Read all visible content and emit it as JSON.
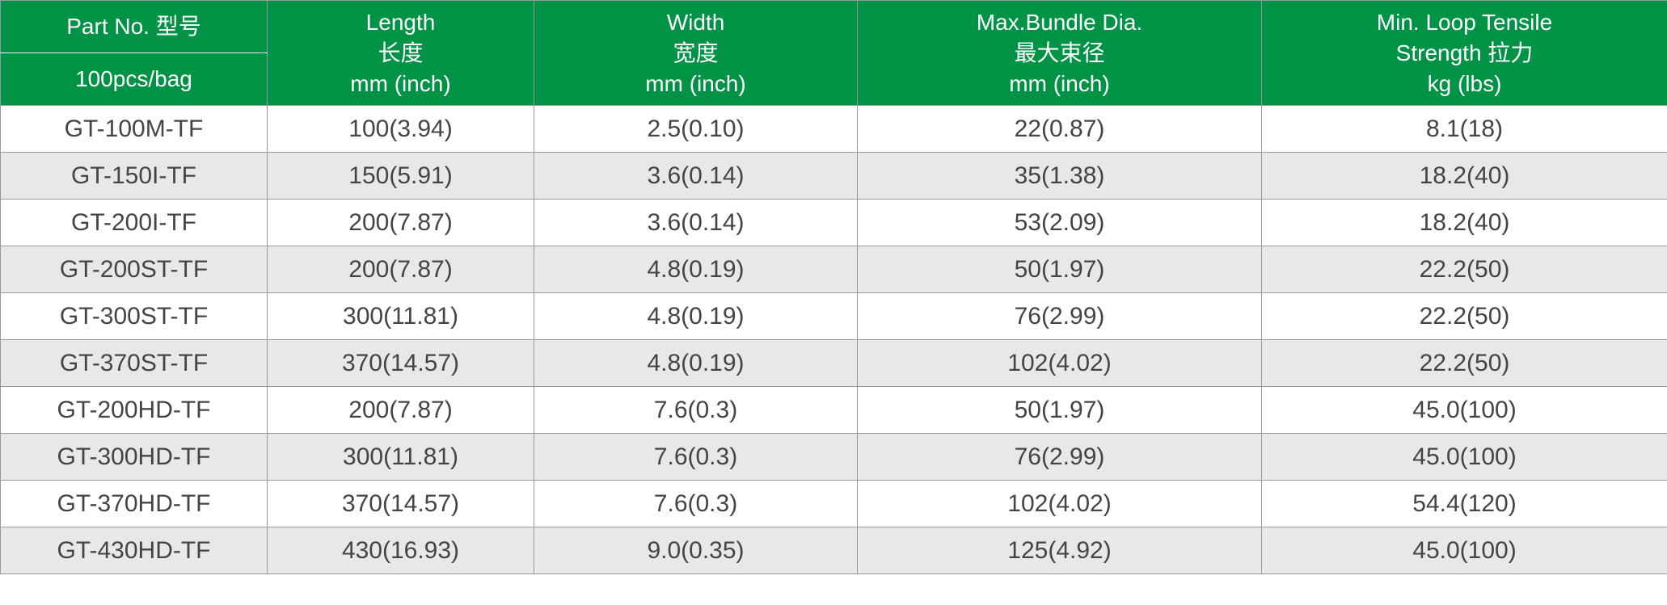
{
  "table": {
    "header_bg": "#009245",
    "header_fg": "#ffffff",
    "row_odd_bg": "#ffffff",
    "row_even_bg": "#e8e8e8",
    "border_color": "#999999",
    "columns": {
      "partno_top": "Part No. 型号",
      "partno_bottom": "100pcs/bag",
      "length": "Length\n长度\nmm (inch)",
      "width": "Width\n宽度\nmm (inch)",
      "bundle": "Max.Bundle Dia.\n最大束径\nmm (inch)",
      "tensile": "Min. Loop Tensile\nStrength 拉力\nkg (lbs)"
    },
    "rows": [
      {
        "partno": "GT-100M-TF",
        "length": "100(3.94)",
        "width": "2.5(0.10)",
        "bundle": "22(0.87)",
        "tensile": "8.1(18)"
      },
      {
        "partno": "GT-150I-TF",
        "length": "150(5.91)",
        "width": "3.6(0.14)",
        "bundle": "35(1.38)",
        "tensile": "18.2(40)"
      },
      {
        "partno": "GT-200I-TF",
        "length": "200(7.87)",
        "width": "3.6(0.14)",
        "bundle": "53(2.09)",
        "tensile": "18.2(40)"
      },
      {
        "partno": "GT-200ST-TF",
        "length": "200(7.87)",
        "width": "4.8(0.19)",
        "bundle": "50(1.97)",
        "tensile": "22.2(50)"
      },
      {
        "partno": "GT-300ST-TF",
        "length": "300(11.81)",
        "width": "4.8(0.19)",
        "bundle": "76(2.99)",
        "tensile": "22.2(50)"
      },
      {
        "partno": "GT-370ST-TF",
        "length": "370(14.57)",
        "width": "4.8(0.19)",
        "bundle": "102(4.02)",
        "tensile": "22.2(50)"
      },
      {
        "partno": "GT-200HD-TF",
        "length": "200(7.87)",
        "width": "7.6(0.3)",
        "bundle": "50(1.97)",
        "tensile": "45.0(100)"
      },
      {
        "partno": "GT-300HD-TF",
        "length": "300(11.81)",
        "width": "7.6(0.3)",
        "bundle": "76(2.99)",
        "tensile": "45.0(100)"
      },
      {
        "partno": "GT-370HD-TF",
        "length": "370(14.57)",
        "width": "7.6(0.3)",
        "bundle": "102(4.02)",
        "tensile": "54.4(120)"
      },
      {
        "partno": "GT-430HD-TF",
        "length": "430(16.93)",
        "width": "9.0(0.35)",
        "bundle": "125(4.92)",
        "tensile": "45.0(100)"
      }
    ]
  }
}
